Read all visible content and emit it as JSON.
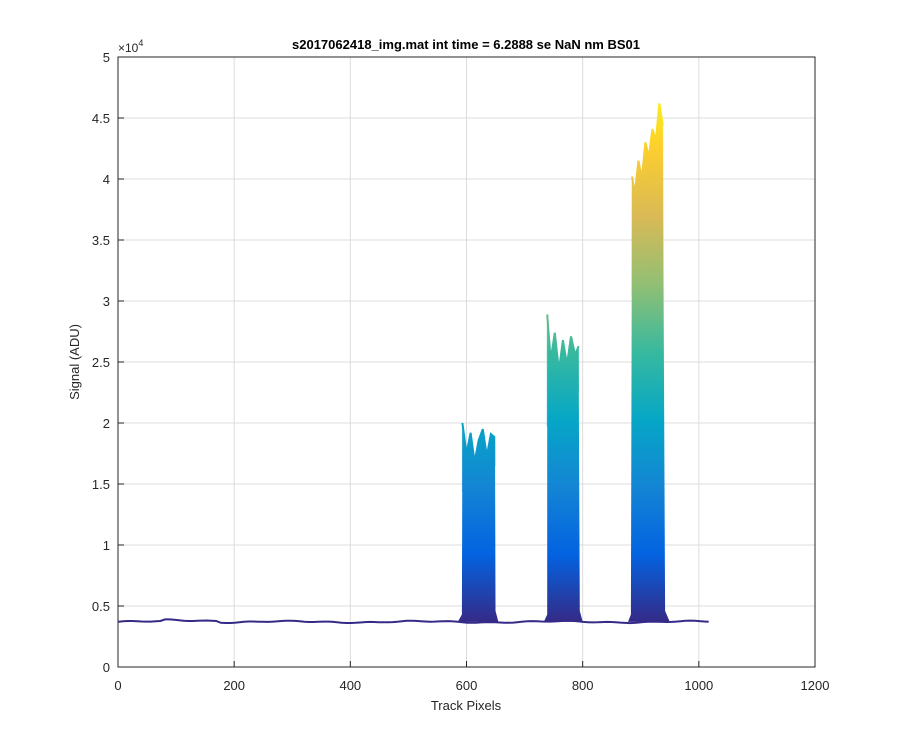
{
  "chart_data": {
    "type": "line",
    "title": "s2017062418_img.mat int time = 6.2888 se  NaN nm BS01",
    "xlabel": "Track Pixels",
    "ylabel": "Signal (ADU)",
    "xlim": [
      0,
      1200
    ],
    "ylim": [
      0,
      50000
    ],
    "x_ticks": [
      "0",
      "200",
      "400",
      "600",
      "800",
      "1000",
      "1200"
    ],
    "y_ticks": [
      "0",
      "0.5",
      "1",
      "1.5",
      "2",
      "2.5",
      "3",
      "3.5",
      "4",
      "4.5",
      "5"
    ],
    "y_exponent_base": "×10",
    "y_exponent_power": "4",
    "grid": true,
    "colormap": "parula",
    "colormap_colors": [
      "#352a87",
      "#0363e1",
      "#1485d4",
      "#06a7c6",
      "#38b99e",
      "#92bf73",
      "#d9ba56",
      "#fcce2e",
      "#f9fb0e"
    ],
    "baseline": 3700,
    "x_end": 1024,
    "peaks": [
      {
        "x_start": 585,
        "x_end": 655,
        "rise_start": 592,
        "fall_end": 650,
        "max": 20000,
        "median": 17500,
        "top_profile": [
          [
            593,
            20000
          ],
          [
            600,
            17500
          ],
          [
            607,
            19200
          ],
          [
            614,
            16800
          ],
          [
            621,
            18600
          ],
          [
            628,
            19500
          ],
          [
            635,
            17300
          ],
          [
            642,
            19100
          ],
          [
            649,
            18800
          ]
        ]
      },
      {
        "x_start": 733,
        "x_end": 800,
        "rise_start": 739,
        "fall_end": 795,
        "max": 28900,
        "median": 24000,
        "top_profile": [
          [
            739,
            28900
          ],
          [
            745,
            25200
          ],
          [
            752,
            27400
          ],
          [
            759,
            24300
          ],
          [
            766,
            26800
          ],
          [
            773,
            24800
          ],
          [
            780,
            27100
          ],
          [
            787,
            25600
          ],
          [
            793,
            26300
          ]
        ]
      },
      {
        "x_start": 878,
        "x_end": 950,
        "rise_start": 883,
        "fall_end": 942,
        "max": 46200,
        "median": 37000,
        "top_profile": [
          [
            885,
            40200
          ],
          [
            890,
            38800
          ],
          [
            896,
            41500
          ],
          [
            902,
            40100
          ],
          [
            908,
            43000
          ],
          [
            914,
            41800
          ],
          [
            920,
            44100
          ],
          [
            926,
            43200
          ],
          [
            932,
            46200
          ],
          [
            938,
            44400
          ]
        ]
      }
    ]
  }
}
